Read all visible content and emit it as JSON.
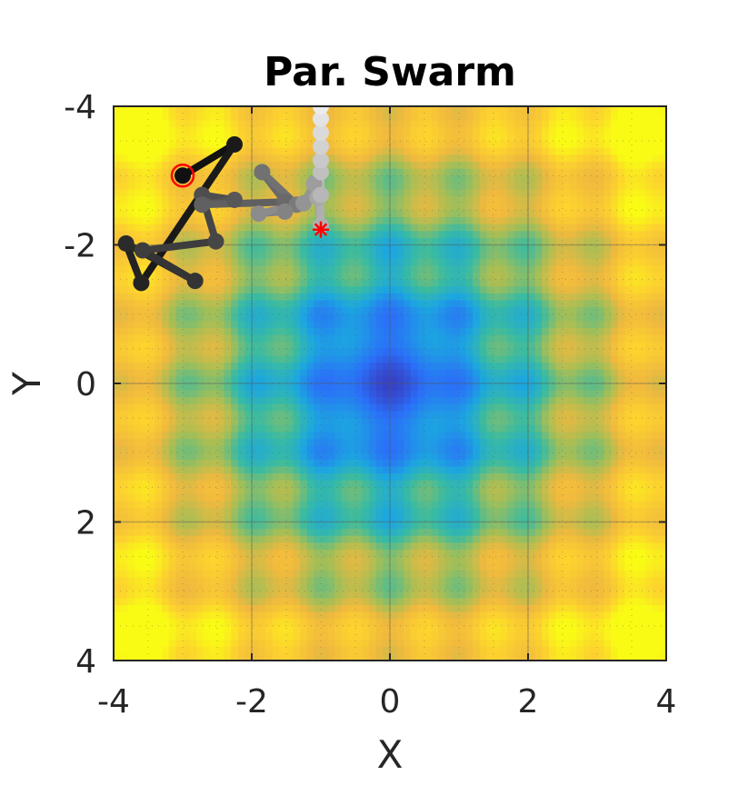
{
  "chart_data": {
    "type": "scatter",
    "title": "Par. Swarm",
    "xlabel": "X",
    "ylabel": "Y",
    "xlim": [
      -4,
      4
    ],
    "ylim": [
      -4,
      4
    ],
    "y_axis_direction": "reversed",
    "xticks": [
      "-4",
      "-2",
      "0",
      "2",
      "4"
    ],
    "yticks": [
      "-4",
      "-2",
      "0",
      "2",
      "4"
    ],
    "grid": true,
    "background": "heatmap of objective function, minimum at (0, 0)",
    "colormap": [
      "#3e26a8",
      "#2b6ff8",
      "#1ca6e0",
      "#3abba1",
      "#a4be57",
      "#f0b93e",
      "#fcd12f",
      "#f9fb15"
    ],
    "trajectory": {
      "color_gradient": [
        "#111111",
        "#ececec"
      ],
      "points": [
        {
          "x": -3.0,
          "y": -3.0
        },
        {
          "x": -2.25,
          "y": -3.45
        },
        {
          "x": -3.6,
          "y": -1.45
        },
        {
          "x": -3.82,
          "y": -2.02
        },
        {
          "x": -2.82,
          "y": -1.48
        },
        {
          "x": -3.58,
          "y": -1.92
        },
        {
          "x": -2.52,
          "y": -2.05
        },
        {
          "x": -2.72,
          "y": -2.72
        },
        {
          "x": -2.25,
          "y": -2.65
        },
        {
          "x": -2.72,
          "y": -2.58
        },
        {
          "x": -1.52,
          "y": -2.62
        },
        {
          "x": -1.85,
          "y": -3.05
        },
        {
          "x": -1.35,
          "y": -2.58
        },
        {
          "x": -1.52,
          "y": -2.48
        },
        {
          "x": -1.9,
          "y": -2.45
        },
        {
          "x": -1.25,
          "y": -2.6
        },
        {
          "x": -1.1,
          "y": -2.88
        },
        {
          "x": -1.05,
          "y": -2.68
        },
        {
          "x": -1.0,
          "y": -2.28
        },
        {
          "x": -1.0,
          "y": -2.72
        },
        {
          "x": -1.0,
          "y": -3.05
        },
        {
          "x": -1.0,
          "y": -3.22
        },
        {
          "x": -1.0,
          "y": -3.42
        },
        {
          "x": -1.0,
          "y": -3.62
        },
        {
          "x": -1.0,
          "y": -3.82
        },
        {
          "x": -1.0,
          "y": -4.0
        }
      ]
    },
    "start_marker": {
      "x": -3.0,
      "y": -3.0,
      "color": "#ff0000"
    },
    "best_marker": {
      "x": -1.0,
      "y": -2.22,
      "color": "#ff0000",
      "symbol": "asterisk"
    }
  }
}
